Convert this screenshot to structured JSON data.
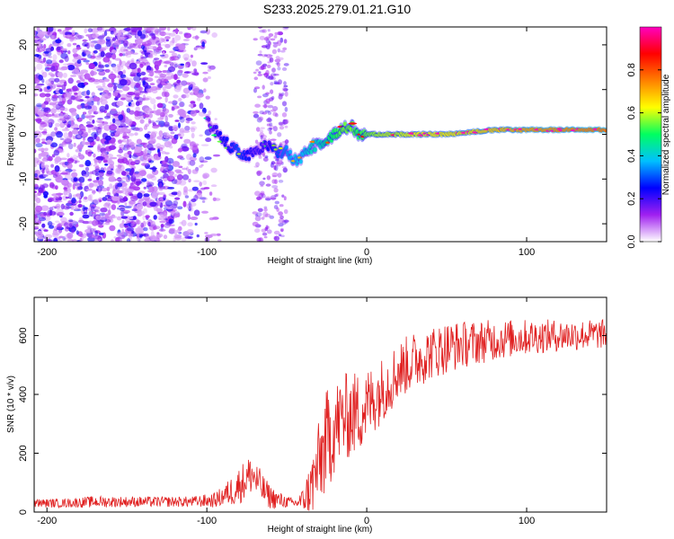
{
  "title": "S233.2025.279.01.21.G10",
  "chart_data": [
    {
      "type": "heatmap",
      "title": "",
      "xlabel": "Height of straight line (km)",
      "ylabel": "Frequency (Hz)",
      "xlim": [
        -208,
        150
      ],
      "ylim": [
        -24,
        24
      ],
      "xticks": [
        -200,
        -100,
        0,
        100
      ],
      "yticks": [
        -20,
        -10,
        0,
        10,
        20
      ],
      "colorbar": {
        "label": "Normalized spectral amplitude",
        "range": [
          0,
          1
        ],
        "ticks": [
          0.0,
          0.2,
          0.4,
          0.6,
          0.8
        ],
        "tick_labels": [
          "0.0",
          "0.2",
          "0.4",
          "0.6",
          "0.8"
        ],
        "colormap": [
          "#ffffff",
          "#a020f0",
          "#0000ff",
          "#00c0ff",
          "#00ff60",
          "#ffff00",
          "#ff8000",
          "#ff0000",
          "#ff00c0"
        ]
      },
      "ridge": {
        "x": [
          -100,
          -95,
          -90,
          -85,
          -80,
          -75,
          -70,
          -65,
          -60,
          -55,
          -50,
          -45,
          -40,
          -35,
          -30,
          -25,
          -20,
          -15,
          -10,
          -5,
          0,
          10,
          20,
          30,
          50,
          80,
          100,
          150
        ],
        "y": [
          3,
          1,
          -1,
          -3,
          -4,
          -5,
          -4,
          -3,
          -2,
          -4,
          -4,
          -6,
          -5,
          -3,
          -2,
          -1,
          0,
          1,
          2,
          0,
          0,
          0,
          0,
          0,
          0,
          1,
          1,
          1
        ],
        "amplitude": [
          0.2,
          0.25,
          0.3,
          0.3,
          0.35,
          0.3,
          0.25,
          0.25,
          0.3,
          0.35,
          0.4,
          0.45,
          0.45,
          0.5,
          0.5,
          0.55,
          0.6,
          0.65,
          0.65,
          0.6,
          0.65,
          0.7,
          0.7,
          0.75,
          0.75,
          0.8,
          0.85,
          0.9
        ]
      },
      "noise_region": {
        "x": [
          -208,
          -95
        ],
        "amplitude_range": [
          0.05,
          0.25
        ]
      }
    },
    {
      "type": "line",
      "title": "",
      "xlabel": "Height of straight line (km)",
      "ylabel": "SNR (10 * v/v)",
      "xlim": [
        -208,
        150
      ],
      "ylim": [
        0,
        730
      ],
      "xticks": [
        -200,
        -100,
        0,
        100
      ],
      "yticks": [
        0,
        200,
        400,
        600
      ],
      "color": "#e02020",
      "series": [
        {
          "name": "SNR",
          "x": [
            -208,
            -190,
            -170,
            -150,
            -130,
            -110,
            -95,
            -88,
            -82,
            -76,
            -72,
            -68,
            -64,
            -60,
            -55,
            -50,
            -45,
            -40,
            -35,
            -30,
            -25,
            -20,
            -15,
            -10,
            -5,
            0,
            5,
            10,
            15,
            20,
            25,
            30,
            40,
            50,
            60,
            80,
            100,
            120,
            150
          ],
          "y": [
            30,
            30,
            35,
            35,
            35,
            35,
            40,
            60,
            80,
            110,
            130,
            100,
            70,
            50,
            40,
            35,
            30,
            40,
            80,
            160,
            240,
            290,
            320,
            330,
            340,
            360,
            390,
            420,
            450,
            480,
            500,
            515,
            540,
            560,
            570,
            585,
            595,
            600,
            605
          ],
          "noise_amplitude": [
            15,
            15,
            20,
            18,
            18,
            18,
            25,
            40,
            60,
            70,
            70,
            60,
            50,
            40,
            30,
            20,
            15,
            40,
            100,
            150,
            180,
            160,
            150,
            150,
            140,
            130,
            120,
            110,
            110,
            100,
            100,
            100,
            90,
            90,
            80,
            70,
            60,
            55,
            50
          ]
        }
      ]
    }
  ]
}
